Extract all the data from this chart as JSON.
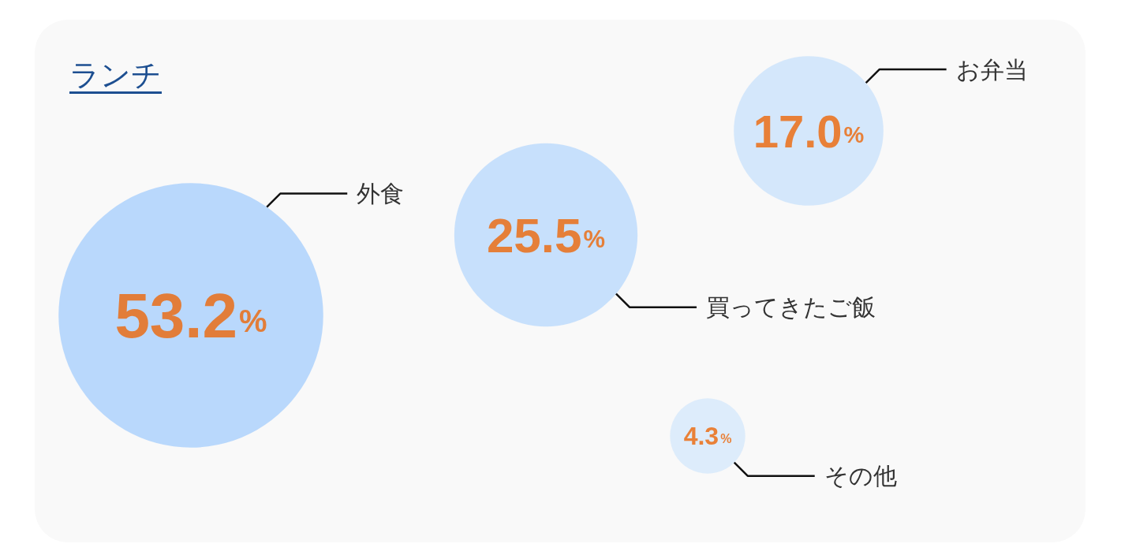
{
  "chart_data": {
    "type": "other",
    "title": "ランチ",
    "categories": [
      "外食",
      "買ってきたご飯",
      "お弁当",
      "その他"
    ],
    "values": [
      53.2,
      25.5,
      17.0,
      4.3
    ],
    "value_labels": [
      "53.2%",
      "25.5%",
      "17.0%",
      "4.3%"
    ],
    "colors": [
      "#a9d0fc",
      "#bad9fc",
      "#cbe2fb",
      "#d6e8fb"
    ]
  }
}
